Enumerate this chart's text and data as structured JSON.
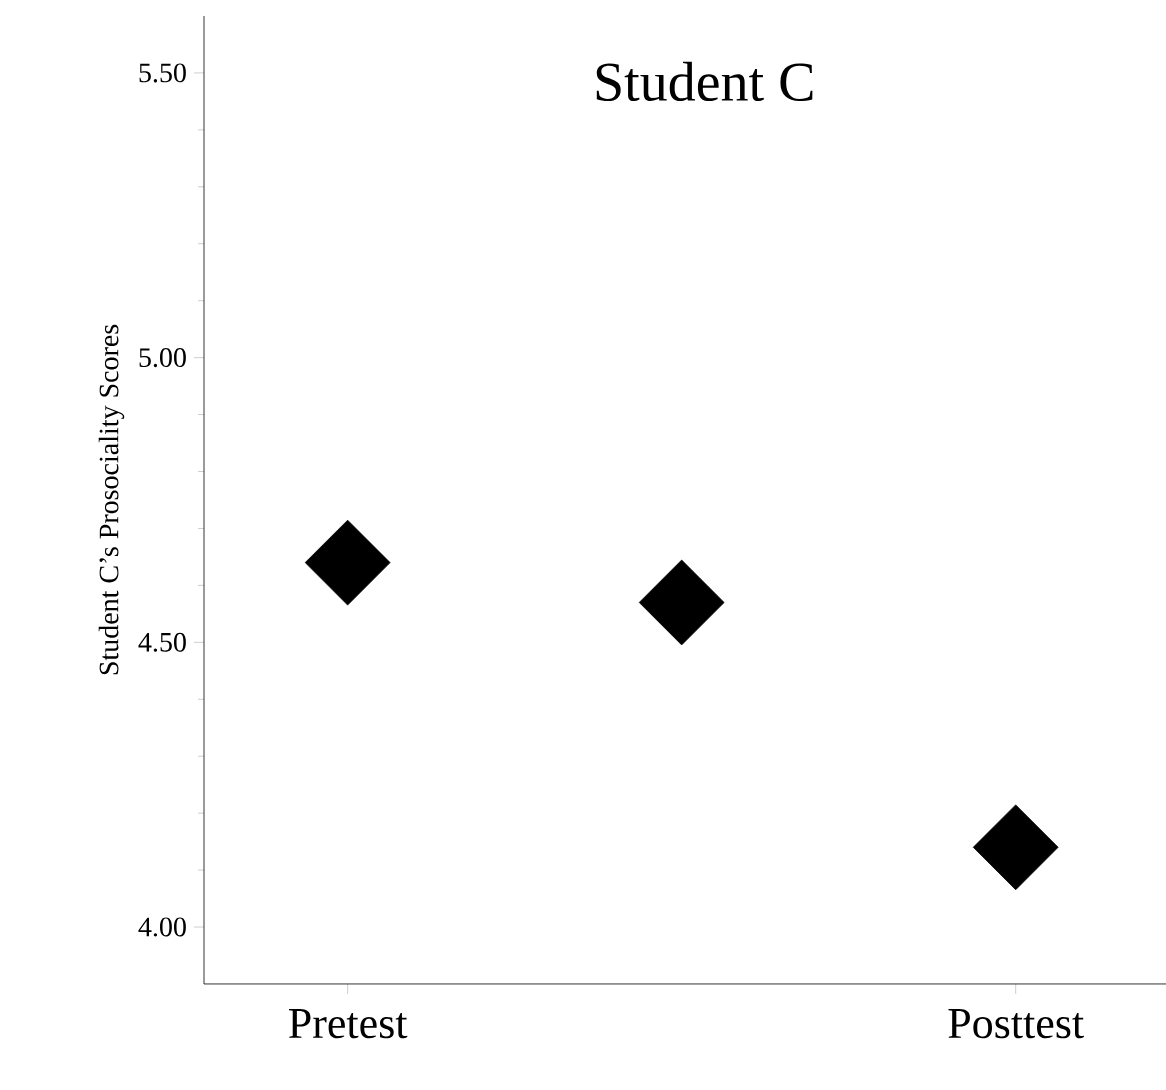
{
  "chart_data": {
    "type": "scatter",
    "title": "Student C",
    "ylabel": "Student C’s Prosociality Scores",
    "categories": [
      "Pretest",
      null,
      "Posttest"
    ],
    "values": [
      4.64,
      4.57,
      4.14
    ],
    "color": "#000000",
    "marker": "diamond",
    "ylim": [
      3.9,
      5.6
    ],
    "yticks": [
      {
        "value": 4.0,
        "label": "4.00"
      },
      {
        "value": 4.5,
        "label": "4.50"
      },
      {
        "value": 5.0,
        "label": "5.00"
      },
      {
        "value": 5.5,
        "label": "5.50"
      }
    ],
    "line_style": "none"
  }
}
